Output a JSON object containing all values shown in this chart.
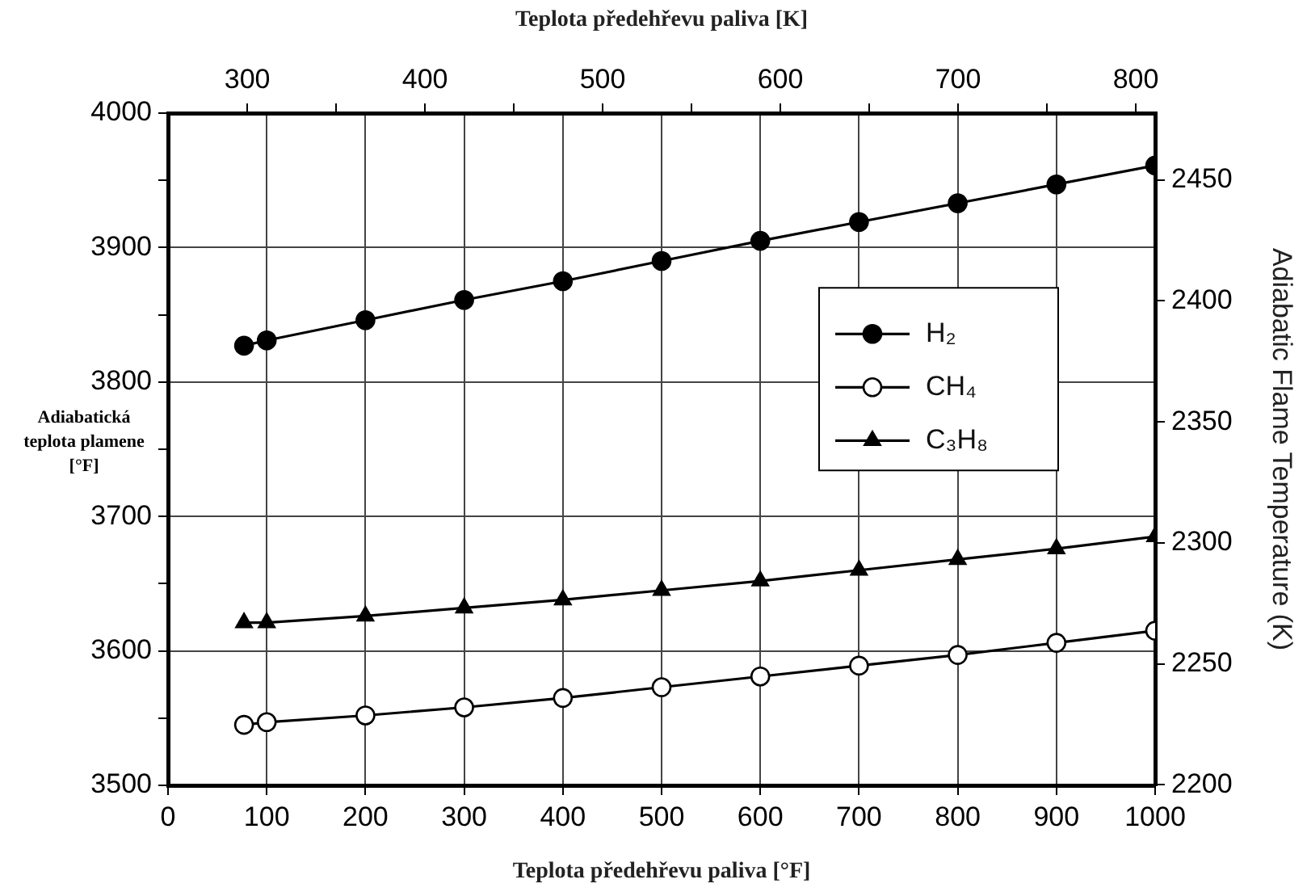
{
  "chart_data": {
    "type": "line",
    "xlabel": "Teplota předehřevu paliva [°F]",
    "x2label": "Teplota předehřevu paliva [K]",
    "ylabel": "Adiabatická teplota plamene [°F]",
    "y2label": "Adiabatic Flame Temperature (K)",
    "x": [
      77,
      100,
      200,
      300,
      400,
      500,
      600,
      700,
      800,
      900,
      1000
    ],
    "series": [
      {
        "name": "H₂",
        "color": "#000000",
        "marker": "circle",
        "values": [
          3827,
          3831,
          3846,
          3861,
          3875,
          3890,
          3905,
          3919,
          3933,
          3947,
          3961
        ]
      },
      {
        "name": "CH₄",
        "color": "#000000",
        "marker": "circle-open",
        "values": [
          3545,
          3547,
          3552,
          3558,
          3565,
          3573,
          3581,
          3589,
          3597,
          3606,
          3615
        ]
      },
      {
        "name": "C₃H₈",
        "color": "#000000",
        "marker": "triangle",
        "values": [
          3621,
          3621,
          3626,
          3632,
          3638,
          3645,
          3652,
          3660,
          3668,
          3676,
          3685
        ]
      }
    ],
    "xlim": [
      0,
      1000
    ],
    "xticks": [
      0,
      100,
      200,
      300,
      400,
      500,
      600,
      700,
      800,
      900,
      1000
    ],
    "ylim": [
      3500,
      4000
    ],
    "yticks": [
      3500,
      {
        "value": 3550,
        "label": null
      },
      3600,
      {
        "value": 3650,
        "label": null
      },
      3700,
      {
        "value": 3750,
        "label": null
      },
      3800,
      {
        "value": 3850,
        "label": null
      },
      3900,
      {
        "value": 3950,
        "label": null
      },
      4000
    ],
    "x2lim": [
      255.4,
      810.9
    ],
    "x2ticks": [
      300,
      {
        "value": 350,
        "label": null
      },
      400,
      {
        "value": 450,
        "label": null
      },
      500,
      {
        "value": 550,
        "label": null
      },
      600,
      {
        "value": 650,
        "label": null
      },
      700,
      {
        "value": 750,
        "label": null
      },
      800
    ],
    "y2lim": [
      2199.8,
      2477.6
    ],
    "y2ticks": [
      2200,
      2250,
      2300,
      2350,
      2400,
      2450
    ],
    "grid": true,
    "legend": "right",
    "line_style": "solid"
  }
}
